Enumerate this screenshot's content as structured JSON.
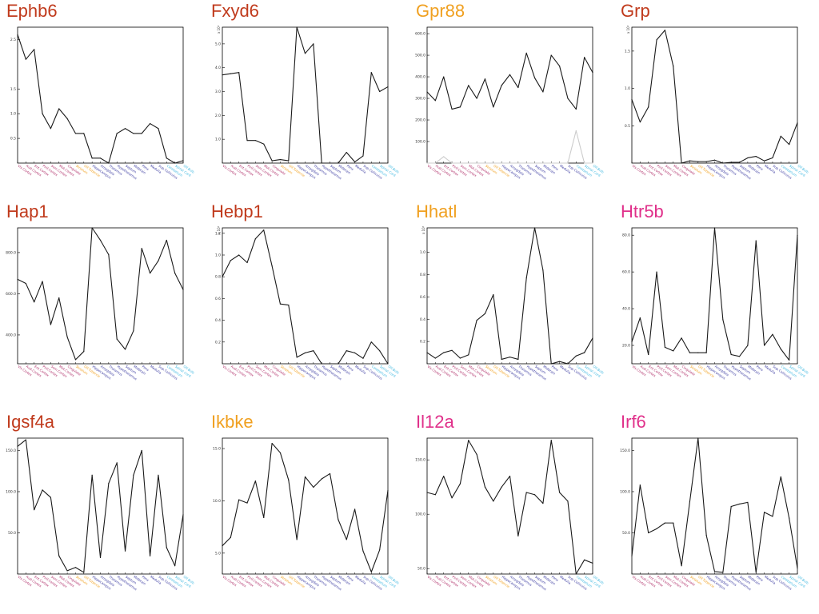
{
  "chart_data": [
    {
      "type": "line",
      "title": "Ephb6",
      "title_color": "#c03a1c",
      "multiplier": "",
      "yticks": [
        0.5,
        1.0,
        1.5,
        2.5
      ],
      "ylim": [
        0,
        2.75
      ],
      "series": [
        {
          "values": [
            2.6,
            2.1,
            2.3,
            1.0,
            0.7,
            1.1,
            0.9,
            0.6,
            0.6,
            0.1,
            0.1,
            0.0,
            0.6,
            0.7,
            0.6,
            0.6,
            0.8,
            0.7,
            0.1,
            0.0,
            0.05
          ]
        }
      ]
    },
    {
      "type": "line",
      "title": "Fxyd6",
      "title_color": "#c03a1c",
      "multiplier": "x 10²",
      "yticks": [
        1.0,
        2.0,
        3.0,
        4.0,
        5.0
      ],
      "ylim": [
        0,
        5.7
      ],
      "series": [
        {
          "values": [
            3.7,
            3.75,
            3.8,
            0.95,
            0.95,
            0.8,
            0.1,
            0.15,
            0.1,
            5.7,
            4.6,
            5.0,
            0.0,
            0.0,
            0.0,
            0.45,
            0.05,
            0.3,
            3.8,
            3.0,
            3.2
          ]
        }
      ]
    },
    {
      "type": "line",
      "title": "Gpr88",
      "title_color": "#f0a020",
      "multiplier": "",
      "yticks": [
        100.0,
        200.0,
        300.0,
        400.0,
        500.0,
        600.0
      ],
      "ylim": [
        0,
        630
      ],
      "series": [
        {
          "values": [
            330,
            290,
            400,
            250,
            260,
            360,
            300,
            390,
            260,
            360,
            410,
            350,
            510,
            395,
            330,
            500,
            450,
            300,
            250,
            490,
            420
          ]
        },
        {
          "values": [
            0,
            0,
            30,
            0,
            0,
            0,
            0,
            0,
            0,
            0,
            0,
            0,
            0,
            0,
            0,
            0,
            0,
            0,
            150,
            0,
            0
          ],
          "color": "#cccccc"
        }
      ]
    },
    {
      "type": "line",
      "title": "Grp",
      "title_color": "#c03a1c",
      "multiplier": "x 10²",
      "yticks": [
        0.5,
        1.0,
        1.5
      ],
      "ylim": [
        0,
        1.82
      ],
      "series": [
        {
          "values": [
            0.85,
            0.55,
            0.75,
            1.65,
            1.78,
            1.3,
            0.0,
            0.03,
            0.02,
            0.02,
            0.04,
            0.0,
            0.01,
            0.01,
            0.07,
            0.09,
            0.03,
            0.07,
            0.36,
            0.25,
            0.54
          ]
        }
      ]
    },
    {
      "type": "line",
      "title": "Hap1",
      "title_color": "#c03a1c",
      "multiplier": "",
      "yticks": [
        400.0,
        600.0,
        800.0
      ],
      "ylim": [
        260,
        920
      ],
      "series": [
        {
          "values": [
            670,
            650,
            560,
            660,
            450,
            580,
            390,
            280,
            320,
            920,
            860,
            790,
            380,
            330,
            420,
            820,
            700,
            760,
            860,
            700,
            620
          ]
        }
      ]
    },
    {
      "type": "line",
      "title": "Hebp1",
      "title_color": "#c03a1c",
      "multiplier": "x 10²",
      "yticks": [
        0.2,
        0.4,
        0.6,
        0.8,
        1.0,
        1.2
      ],
      "ylim": [
        0,
        1.25
      ],
      "series": [
        {
          "values": [
            0.8,
            0.95,
            1.0,
            0.93,
            1.15,
            1.23,
            0.9,
            0.55,
            0.54,
            0.06,
            0.1,
            0.12,
            0.0,
            0.0,
            0.0,
            0.12,
            0.1,
            0.05,
            0.2,
            0.12,
            0.0
          ]
        }
      ]
    },
    {
      "type": "line",
      "title": "Hhatl",
      "title_color": "#f0a020",
      "multiplier": "x 10²",
      "yticks": [
        0.2,
        0.4,
        0.6,
        0.8,
        1.0
      ],
      "ylim": [
        0,
        1.22
      ],
      "series": [
        {
          "values": [
            0.1,
            0.05,
            0.1,
            0.12,
            0.05,
            0.08,
            0.39,
            0.45,
            0.62,
            0.04,
            0.06,
            0.04,
            0.77,
            1.22,
            0.84,
            0.0,
            0.02,
            0.0,
            0.07,
            0.1,
            0.23
          ]
        }
      ]
    },
    {
      "type": "line",
      "title": "Htr5b",
      "title_color": "#e0308a",
      "multiplier": "",
      "yticks": [
        20.0,
        40.0,
        60.0,
        80.0
      ],
      "ylim": [
        10,
        84
      ],
      "series": [
        {
          "values": [
            22,
            35,
            15,
            60,
            19,
            17,
            24,
            16,
            16,
            16,
            84,
            34,
            15,
            14,
            20,
            77,
            20,
            26,
            18,
            12,
            80
          ]
        }
      ]
    },
    {
      "type": "line",
      "title": "Igsf4a",
      "title_color": "#c03a1c",
      "multiplier": "",
      "yticks": [
        50.0,
        100.0,
        150.0
      ],
      "ylim": [
        0,
        165
      ],
      "series": [
        {
          "values": [
            155,
            163,
            78,
            102,
            93,
            22,
            4,
            8,
            2,
            120,
            20,
            110,
            135,
            28,
            120,
            150,
            22,
            120,
            32,
            10,
            72
          ]
        }
      ]
    },
    {
      "type": "line",
      "title": "Ikbke",
      "title_color": "#f0a020",
      "multiplier": "",
      "yticks": [
        5.0,
        10.0,
        15.0
      ],
      "ylim": [
        3,
        16
      ],
      "series": [
        {
          "values": [
            5.7,
            6.5,
            10.1,
            9.8,
            11.9,
            8.4,
            15.5,
            14.6,
            12.0,
            6.3,
            12.3,
            11.3,
            12.1,
            12.6,
            8.2,
            6.3,
            9.2,
            5.2,
            3.2,
            5.3,
            11.0
          ]
        }
      ]
    },
    {
      "type": "line",
      "title": "Il12a",
      "title_color": "#e0308a",
      "multiplier": "",
      "yticks": [
        50.0,
        100.0,
        150.0
      ],
      "ylim": [
        45,
        170
      ],
      "series": [
        {
          "values": [
            120,
            118,
            135,
            115,
            128,
            168,
            155,
            125,
            112,
            125,
            135,
            80,
            120,
            118,
            110,
            168,
            120,
            112,
            45,
            58,
            55
          ]
        }
      ]
    },
    {
      "type": "line",
      "title": "Irf6",
      "title_color": "#e0308a",
      "multiplier": "",
      "yticks": [
        50.0,
        100.0,
        150.0
      ],
      "ylim": [
        0,
        165
      ],
      "series": [
        {
          "values": [
            22,
            108,
            50,
            55,
            62,
            62,
            10,
            88,
            165,
            47,
            3,
            2,
            82,
            85,
            87,
            2,
            75,
            70,
            118,
            68,
            7
          ]
        }
      ]
    }
  ],
  "x_labels": [
    {
      "text": "Vis.Cortex",
      "color": "#b0306a"
    },
    {
      "text": "Aud.Cortex",
      "color": "#b0306a"
    },
    {
      "text": "Ent.Cortex",
      "color": "#b0306a"
    },
    {
      "text": "Pirif.Cortex",
      "color": "#b0306a"
    },
    {
      "text": "Som.Cortex",
      "color": "#b0306a"
    },
    {
      "text": "Mot.Cortex",
      "color": "#b0306a"
    },
    {
      "text": "Cingulate",
      "color": "#b0306a"
    },
    {
      "text": "Striatum",
      "color": "#f0a020"
    },
    {
      "text": "Olf.Tubercle",
      "color": "#f0a020"
    },
    {
      "text": "Hippocampus",
      "color": "#3a3aa0"
    },
    {
      "text": "Amygdala",
      "color": "#3a3aa0"
    },
    {
      "text": "Thalamus",
      "color": "#3a3aa0"
    },
    {
      "text": "Hypothalamus",
      "color": "#3a3aa0"
    },
    {
      "text": "Septum",
      "color": "#3a3aa0"
    },
    {
      "text": "Midbrain",
      "color": "#3a3aa0"
    },
    {
      "text": "Pons",
      "color": "#3a3aa0"
    },
    {
      "text": "Medulla",
      "color": "#3a3aa0"
    },
    {
      "text": "Sup.Colliculus",
      "color": "#3a3aa0"
    },
    {
      "text": "Cerebellum",
      "color": "#40b8e0"
    },
    {
      "text": "Spinal Cord",
      "color": "#40b8e0"
    },
    {
      "text": "Olf.Bulb",
      "color": "#40b8e0"
    }
  ]
}
